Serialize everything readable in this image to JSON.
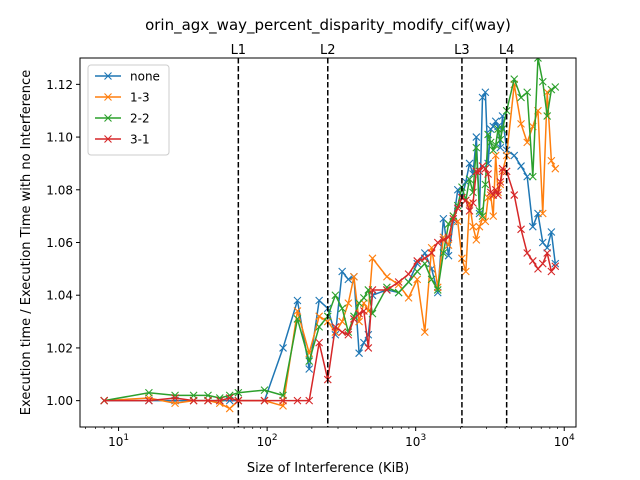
{
  "chart_data": {
    "type": "line",
    "title": "orin_agx_way_percent_disparity_modify_cif(way)",
    "xlabel": "Size of Interference (KiB)",
    "ylabel": "Execution time / Execution Time with no Interference",
    "xscale": "log",
    "xlim": [
      5.5,
      12000
    ],
    "ylim": [
      0.99,
      1.13
    ],
    "xticks": [
      10,
      100,
      1000,
      10000
    ],
    "xtick_labels": [
      {
        "base": "10",
        "exp": "1"
      },
      {
        "base": "10",
        "exp": "2"
      },
      {
        "base": "10",
        "exp": "3"
      },
      {
        "base": "10",
        "exp": "4"
      }
    ],
    "yticks": [
      1.0,
      1.02,
      1.04,
      1.06,
      1.08,
      1.1,
      1.12
    ],
    "ytick_labels": [
      "1.00",
      "1.02",
      "1.04",
      "1.06",
      "1.08",
      "1.10",
      "1.12"
    ],
    "grid": false,
    "legend": "top-left",
    "vlines": [
      {
        "label": "L1",
        "x": 64
      },
      {
        "label": "L2",
        "x": 256
      },
      {
        "label": "L3",
        "x": 2048
      },
      {
        "label": "L4",
        "x": 4096
      }
    ],
    "series": [
      {
        "name": "none",
        "color": "#1f77b4",
        "points": [
          [
            8,
            1.0
          ],
          [
            16,
            1.0
          ],
          [
            24,
            1.0
          ],
          [
            32,
            1.0
          ],
          [
            40,
            1.0
          ],
          [
            48,
            1.0
          ],
          [
            56,
            1.0
          ],
          [
            64,
            1.0
          ],
          [
            96,
            1.0
          ],
          [
            128,
            1.02
          ],
          [
            160,
            1.038
          ],
          [
            192,
            1.012
          ],
          [
            224,
            1.038
          ],
          [
            256,
            1.035
          ],
          [
            288,
            1.025
          ],
          [
            320,
            1.049
          ],
          [
            352,
            1.046
          ],
          [
            384,
            1.047
          ],
          [
            416,
            1.018
          ],
          [
            448,
            1.022
          ],
          [
            480,
            1.025
          ],
          [
            512,
            1.04
          ],
          [
            640,
            1.042
          ],
          [
            768,
            1.041
          ],
          [
            896,
            1.045
          ],
          [
            1024,
            1.052
          ],
          [
            1152,
            1.056
          ],
          [
            1280,
            1.05
          ],
          [
            1408,
            1.041
          ],
          [
            1536,
            1.069
          ],
          [
            1664,
            1.055
          ],
          [
            1792,
            1.068
          ],
          [
            1920,
            1.08
          ],
          [
            2048,
            1.077
          ],
          [
            2176,
            1.083
          ],
          [
            2304,
            1.09
          ],
          [
            2432,
            1.086
          ],
          [
            2560,
            1.1
          ],
          [
            2688,
            1.071
          ],
          [
            2816,
            1.115
          ],
          [
            2944,
            1.117
          ],
          [
            3072,
            1.09
          ],
          [
            3200,
            1.103
          ],
          [
            3328,
            1.104
          ],
          [
            3456,
            1.106
          ],
          [
            3584,
            1.104
          ],
          [
            3712,
            1.096
          ],
          [
            3840,
            1.108
          ],
          [
            4096,
            1.095
          ],
          [
            4608,
            1.093
          ],
          [
            5120,
            1.089
          ],
          [
            5632,
            1.085
          ],
          [
            6144,
            1.066
          ],
          [
            6656,
            1.071
          ],
          [
            7168,
            1.06
          ],
          [
            7680,
            1.058
          ],
          [
            8192,
            1.064
          ],
          [
            8704,
            1.052
          ]
        ]
      },
      {
        "name": "1-3",
        "color": "#ff7f0e",
        "points": [
          [
            8,
            1.0
          ],
          [
            16,
            1.001
          ],
          [
            24,
            0.999
          ],
          [
            32,
            1.0
          ],
          [
            40,
            1.0
          ],
          [
            48,
            0.999
          ],
          [
            56,
            0.997
          ],
          [
            64,
            1.0
          ],
          [
            96,
            1.0
          ],
          [
            128,
            0.998
          ],
          [
            160,
            1.034
          ],
          [
            192,
            1.018
          ],
          [
            224,
            1.032
          ],
          [
            256,
            1.03
          ],
          [
            288,
            1.026
          ],
          [
            320,
            1.03
          ],
          [
            352,
            1.037
          ],
          [
            384,
            1.047
          ],
          [
            416,
            1.03
          ],
          [
            448,
            1.037
          ],
          [
            480,
            1.034
          ],
          [
            512,
            1.054
          ],
          [
            640,
            1.047
          ],
          [
            768,
            1.044
          ],
          [
            896,
            1.039
          ],
          [
            1024,
            1.046
          ],
          [
            1152,
            1.026
          ],
          [
            1280,
            1.058
          ],
          [
            1408,
            1.043
          ],
          [
            1536,
            1.062
          ],
          [
            1664,
            1.059
          ],
          [
            1792,
            1.07
          ],
          [
            1920,
            1.068
          ],
          [
            2048,
            1.054
          ],
          [
            2176,
            1.049
          ],
          [
            2304,
            1.075
          ],
          [
            2432,
            1.066
          ],
          [
            2560,
            1.061
          ],
          [
            2688,
            1.066
          ],
          [
            2816,
            1.069
          ],
          [
            2944,
            1.068
          ],
          [
            3072,
            1.077
          ],
          [
            3200,
            1.078
          ],
          [
            3328,
            1.07
          ],
          [
            3456,
            1.093
          ],
          [
            3584,
            1.079
          ],
          [
            3712,
            1.082
          ],
          [
            3840,
            1.087
          ],
          [
            4096,
            1.093
          ],
          [
            4608,
            1.12
          ],
          [
            5120,
            1.105
          ],
          [
            5632,
            1.098
          ],
          [
            6144,
            1.104
          ],
          [
            6656,
            1.11
          ],
          [
            7168,
            1.071
          ],
          [
            7680,
            1.117
          ],
          [
            8192,
            1.091
          ],
          [
            8704,
            1.088
          ]
        ]
      },
      {
        "name": "2-2",
        "color": "#2ca02c",
        "points": [
          [
            8,
            1.0
          ],
          [
            16,
            1.003
          ],
          [
            24,
            1.002
          ],
          [
            32,
            1.002
          ],
          [
            40,
            1.002
          ],
          [
            48,
            1.001
          ],
          [
            56,
            1.002
          ],
          [
            64,
            1.003
          ],
          [
            96,
            1.004
          ],
          [
            128,
            1.002
          ],
          [
            160,
            1.031
          ],
          [
            192,
            1.015
          ],
          [
            224,
            1.028
          ],
          [
            256,
            1.032
          ],
          [
            288,
            1.04
          ],
          [
            320,
            1.035
          ],
          [
            352,
            1.026
          ],
          [
            384,
            1.032
          ],
          [
            416,
            1.037
          ],
          [
            448,
            1.039
          ],
          [
            480,
            1.042
          ],
          [
            512,
            1.033
          ],
          [
            640,
            1.043
          ],
          [
            768,
            1.041
          ],
          [
            896,
            1.045
          ],
          [
            1024,
            1.049
          ],
          [
            1152,
            1.052
          ],
          [
            1280,
            1.046
          ],
          [
            1408,
            1.042
          ],
          [
            1536,
            1.056
          ],
          [
            1664,
            1.067
          ],
          [
            1792,
            1.07
          ],
          [
            1920,
            1.074
          ],
          [
            2048,
            1.081
          ],
          [
            2176,
            1.076
          ],
          [
            2304,
            1.084
          ],
          [
            2432,
            1.079
          ],
          [
            2560,
            1.096
          ],
          [
            2688,
            1.072
          ],
          [
            2816,
            1.07
          ],
          [
            2944,
            1.082
          ],
          [
            3072,
            1.101
          ],
          [
            3200,
            1.098
          ],
          [
            3328,
            1.095
          ],
          [
            3456,
            1.097
          ],
          [
            3584,
            1.103
          ],
          [
            3712,
            1.099
          ],
          [
            3840,
            1.103
          ],
          [
            4096,
            1.11
          ],
          [
            4608,
            1.122
          ],
          [
            5120,
            1.115
          ],
          [
            5632,
            1.117
          ],
          [
            6144,
            1.085
          ],
          [
            6656,
            1.13
          ],
          [
            7168,
            1.121
          ],
          [
            7680,
            1.108
          ],
          [
            8192,
            1.118
          ],
          [
            8704,
            1.119
          ]
        ]
      },
      {
        "name": "3-1",
        "color": "#d62728",
        "points": [
          [
            8,
            1.0
          ],
          [
            16,
            1.0
          ],
          [
            24,
            1.001
          ],
          [
            32,
            1.0
          ],
          [
            40,
            1.0
          ],
          [
            48,
            1.0
          ],
          [
            56,
            1.001
          ],
          [
            64,
            1.0
          ],
          [
            96,
            1.0
          ],
          [
            128,
            1.0
          ],
          [
            160,
            1.0
          ],
          [
            192,
            1.0
          ],
          [
            224,
            1.022
          ],
          [
            256,
            1.008
          ],
          [
            288,
            1.028
          ],
          [
            320,
            1.026
          ],
          [
            352,
            1.025
          ],
          [
            384,
            1.031
          ],
          [
            416,
            1.033
          ],
          [
            448,
            1.034
          ],
          [
            480,
            1.02
          ],
          [
            512,
            1.042
          ],
          [
            640,
            1.042
          ],
          [
            768,
            1.045
          ],
          [
            896,
            1.048
          ],
          [
            1024,
            1.053
          ],
          [
            1152,
            1.054
          ],
          [
            1280,
            1.056
          ],
          [
            1408,
            1.06
          ],
          [
            1536,
            1.061
          ],
          [
            1664,
            1.062
          ],
          [
            1792,
            1.069
          ],
          [
            1920,
            1.073
          ],
          [
            2048,
            1.077
          ],
          [
            2176,
            1.076
          ],
          [
            2304,
            1.072
          ],
          [
            2432,
            1.075
          ],
          [
            2560,
            1.087
          ],
          [
            2688,
            1.087
          ],
          [
            2816,
            1.089
          ],
          [
            2944,
            1.088
          ],
          [
            3072,
            1.086
          ],
          [
            3200,
            1.079
          ],
          [
            3328,
            1.078
          ],
          [
            3456,
            1.08
          ],
          [
            3584,
            1.078
          ],
          [
            3712,
            1.083
          ],
          [
            3840,
            1.088
          ],
          [
            4096,
            1.087
          ],
          [
            4608,
            1.078
          ],
          [
            5120,
            1.065
          ],
          [
            5632,
            1.056
          ],
          [
            6144,
            1.053
          ],
          [
            6656,
            1.05
          ],
          [
            7168,
            1.052
          ],
          [
            7680,
            1.056
          ],
          [
            8192,
            1.049
          ],
          [
            8704,
            1.051
          ]
        ]
      }
    ]
  }
}
